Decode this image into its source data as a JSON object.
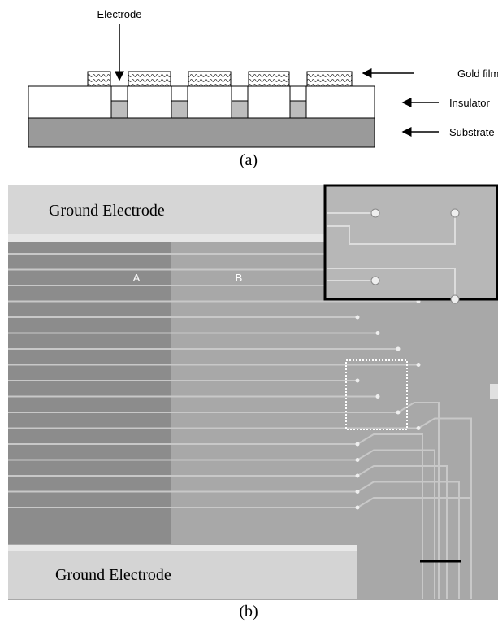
{
  "panel_a": {
    "electrode": "Electrode",
    "gold_film": "Gold film",
    "insulator": "Insulator",
    "substrate": "Substrate",
    "caption": "(a)"
  },
  "panel_b": {
    "ground_top": "Ground Electrode",
    "region_a": "A",
    "region_b": "B",
    "ground_bottom": "Ground Electrode",
    "caption": "(b)"
  }
}
